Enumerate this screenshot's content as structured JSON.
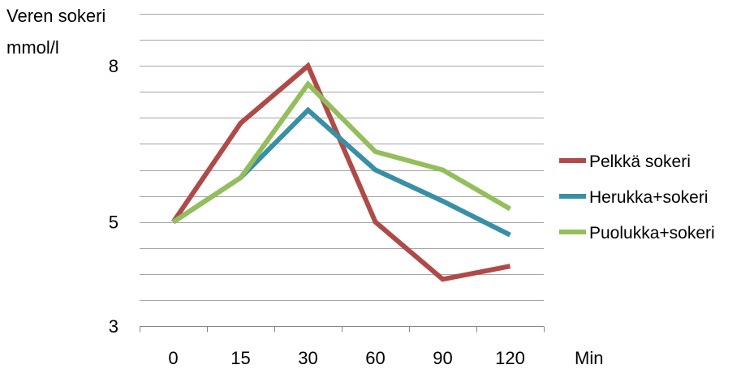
{
  "chart_data": {
    "type": "line",
    "ylabel_line1": "Veren sokeri",
    "ylabel_line2": "mmol/l",
    "xlabel": "Min",
    "categories": [
      "0",
      "15",
      "30",
      "60",
      "90",
      "120"
    ],
    "ylim": [
      3,
      9
    ],
    "yticks": [
      3,
      5,
      8
    ],
    "ytick_labels": [
      "3",
      "5",
      "8"
    ],
    "grid_step": 0.5,
    "grid": true,
    "legend_position": "right",
    "series": [
      {
        "name": "Pelkkä sokeri",
        "color": "#b14a47",
        "values": [
          5.0,
          6.9,
          8.0,
          5.0,
          3.9,
          4.15
        ]
      },
      {
        "name": "Herukka+sokeri",
        "color": "#3790a6",
        "values": [
          5.0,
          5.85,
          7.15,
          6.0,
          5.4,
          4.75
        ]
      },
      {
        "name": "Puolukka+sokeri",
        "color": "#93bf5a",
        "values": [
          5.0,
          5.85,
          7.65,
          6.35,
          6.0,
          5.25
        ]
      }
    ]
  }
}
